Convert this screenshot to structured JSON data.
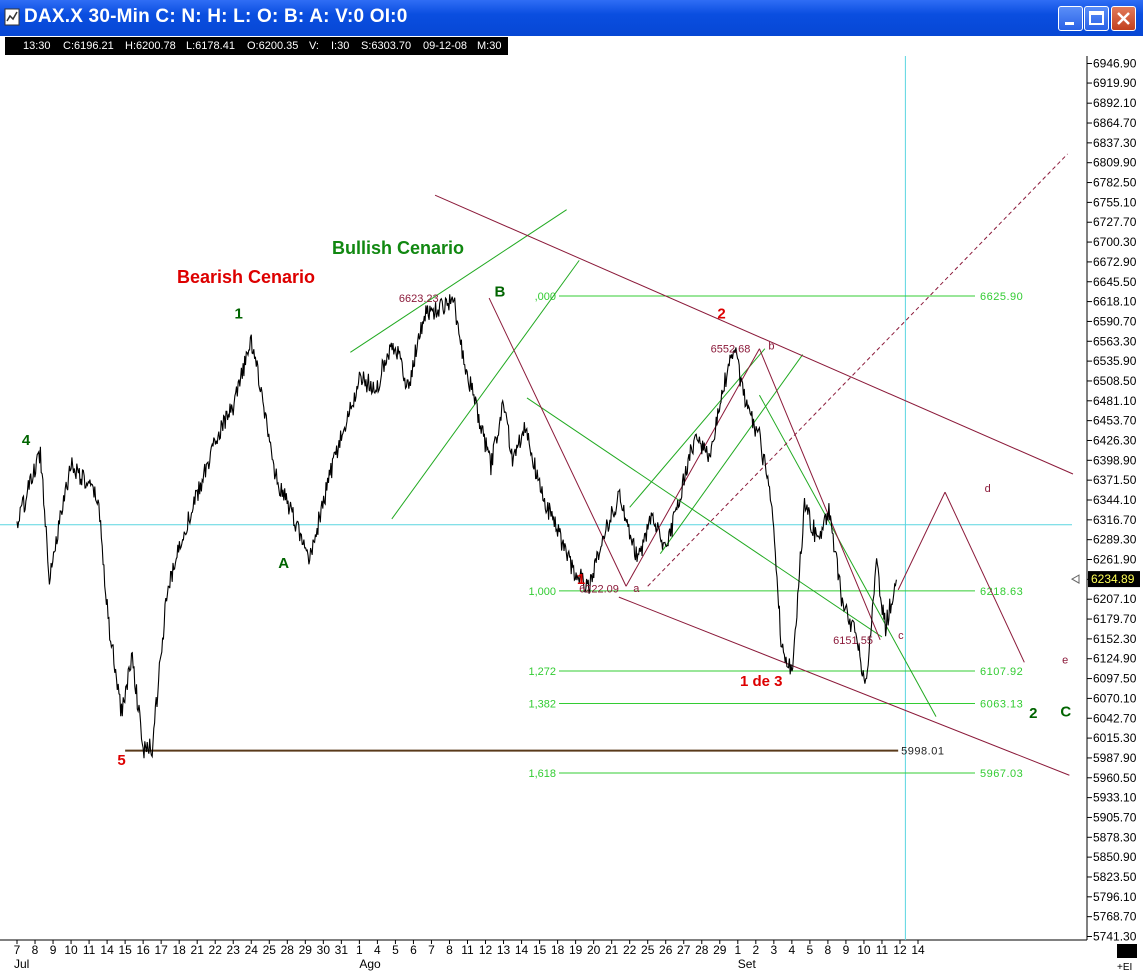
{
  "window": {
    "title": "DAX.X 30-Min C: N: H: L: O: B: A: V:0 OI:0",
    "buttons": [
      "minimize",
      "maximize",
      "close"
    ]
  },
  "infobar": {
    "time": "13:30",
    "close": "C:6196.21",
    "high": "H:6200.78",
    "low": "L:6178.41",
    "open": "O:6200.35",
    "volume": "V:",
    "interval": "I:30",
    "s": "S:6303.70",
    "date": "09-12-08",
    "m": "M:30"
  },
  "chart_data": {
    "type": "line",
    "title": "DAX.X 30-Min",
    "x_ticks": [
      "7",
      "8",
      "9",
      "10",
      "11",
      "14",
      "15",
      "16",
      "17",
      "18",
      "21",
      "22",
      "23",
      "24",
      "25",
      "28",
      "29",
      "30",
      "31",
      "1",
      "4",
      "5",
      "6",
      "7",
      "8",
      "11",
      "12",
      "13",
      "14",
      "15",
      "18",
      "19",
      "20",
      "21",
      "22",
      "25",
      "26",
      "27",
      "28",
      "29",
      "1",
      "2",
      "3",
      "4",
      "5",
      "8",
      "9",
      "10",
      "11",
      "12",
      "14"
    ],
    "x_month_labels": [
      {
        "label": "Jul",
        "day": "7"
      },
      {
        "label": "Ago",
        "day": "1"
      },
      {
        "label": "Set",
        "day": "1"
      }
    ],
    "y_ticks": [
      6946.9,
      6919.9,
      6892.1,
      6864.7,
      6837.3,
      6809.9,
      6782.5,
      6755.1,
      6727.7,
      6700.3,
      6672.9,
      6645.5,
      6618.1,
      6590.7,
      6563.3,
      6535.9,
      6508.5,
      6481.1,
      6453.7,
      6426.3,
      6398.9,
      6371.5,
      6344.1,
      6316.7,
      6289.3,
      6261.9,
      6234.5,
      6207.1,
      6179.7,
      6152.3,
      6124.9,
      6097.5,
      6070.1,
      6042.7,
      6015.3,
      5987.9,
      5960.5,
      5933.1,
      5905.7,
      5878.3,
      5850.9,
      5823.5,
      5796.1,
      5768.7,
      5741.3
    ],
    "ylim": [
      5741.3,
      6946.9
    ],
    "last_price": "6234.89",
    "swing_points": [
      {
        "t": 0.0,
        "v": 6310
      },
      {
        "t": 1.3,
        "v": 6410
      },
      {
        "t": 1.8,
        "v": 6240
      },
      {
        "t": 3.0,
        "v": 6395
      },
      {
        "t": 4.5,
        "v": 6345
      },
      {
        "t": 5.1,
        "v": 6170
      },
      {
        "t": 5.8,
        "v": 6050
      },
      {
        "t": 6.4,
        "v": 6130
      },
      {
        "t": 7.0,
        "v": 5998
      },
      {
        "t": 7.5,
        "v": 6002
      },
      {
        "t": 8.3,
        "v": 6210
      },
      {
        "t": 9.1,
        "v": 6290
      },
      {
        "t": 10.0,
        "v": 6350
      },
      {
        "t": 11.2,
        "v": 6440
      },
      {
        "t": 12.0,
        "v": 6470
      },
      {
        "t": 13.0,
        "v": 6565
      },
      {
        "t": 13.6,
        "v": 6490
      },
      {
        "t": 14.3,
        "v": 6380
      },
      {
        "t": 15.5,
        "v": 6310
      },
      {
        "t": 16.2,
        "v": 6260
      },
      {
        "t": 17.6,
        "v": 6400
      },
      {
        "t": 18.4,
        "v": 6460
      },
      {
        "t": 19.0,
        "v": 6510
      },
      {
        "t": 20.0,
        "v": 6500
      },
      {
        "t": 20.5,
        "v": 6545
      },
      {
        "t": 21.0,
        "v": 6560
      },
      {
        "t": 21.7,
        "v": 6500
      },
      {
        "t": 22.6,
        "v": 6600
      },
      {
        "t": 23.5,
        "v": 6610
      },
      {
        "t": 24.2,
        "v": 6623
      },
      {
        "t": 24.8,
        "v": 6540
      },
      {
        "t": 25.4,
        "v": 6480
      },
      {
        "t": 26.3,
        "v": 6390
      },
      {
        "t": 27.0,
        "v": 6480
      },
      {
        "t": 27.5,
        "v": 6400
      },
      {
        "t": 28.2,
        "v": 6450
      },
      {
        "t": 29.0,
        "v": 6360
      },
      {
        "t": 30.0,
        "v": 6300
      },
      {
        "t": 30.8,
        "v": 6250
      },
      {
        "t": 31.7,
        "v": 6224
      },
      {
        "t": 32.5,
        "v": 6290
      },
      {
        "t": 33.4,
        "v": 6350
      },
      {
        "t": 34.5,
        "v": 6260
      },
      {
        "t": 35.2,
        "v": 6325
      },
      {
        "t": 36.0,
        "v": 6270
      },
      {
        "t": 36.8,
        "v": 6350
      },
      {
        "t": 37.6,
        "v": 6430
      },
      {
        "t": 38.4,
        "v": 6400
      },
      {
        "t": 39.2,
        "v": 6500
      },
      {
        "t": 39.8,
        "v": 6552
      },
      {
        "t": 40.5,
        "v": 6470
      },
      {
        "t": 41.2,
        "v": 6430
      },
      {
        "t": 41.9,
        "v": 6340
      },
      {
        "t": 42.4,
        "v": 6150
      },
      {
        "t": 43.0,
        "v": 6100
      },
      {
        "t": 43.7,
        "v": 6340
      },
      {
        "t": 44.4,
        "v": 6290
      },
      {
        "t": 45.1,
        "v": 6330
      },
      {
        "t": 45.8,
        "v": 6200
      },
      {
        "t": 46.5,
        "v": 6160
      },
      {
        "t": 47.1,
        "v": 6090
      },
      {
        "t": 47.7,
        "v": 6250
      },
      {
        "t": 48.2,
        "v": 6170
      },
      {
        "t": 48.8,
        "v": 6234
      }
    ],
    "fib_levels": [
      {
        "ratio": ",000",
        "price": "6625.90"
      },
      {
        "ratio": "1,000",
        "price": "6218.63"
      },
      {
        "ratio": "1,272",
        "price": "6107.92"
      },
      {
        "ratio": "1,382",
        "price": "6063.13"
      },
      {
        "ratio": "1,618",
        "price": "5967.03"
      }
    ],
    "horizontal_levels": [
      {
        "label": "5998.01",
        "value": 5998.01
      },
      {
        "label": "",
        "value": 6310
      }
    ],
    "price_annotations": [
      "6623.23",
      "6552.68",
      "6222.09",
      "6151.55"
    ],
    "small_labels": [
      "a",
      "b",
      "c",
      "d",
      "e"
    ],
    "wave_labels": [
      {
        "text": "4",
        "color": "#006400"
      },
      {
        "text": "5",
        "color": "#dd0000"
      },
      {
        "text": "1",
        "color": "#006400"
      },
      {
        "text": "A",
        "color": "#006400"
      },
      {
        "text": "B",
        "color": "#006400"
      },
      {
        "text": "2",
        "color": "#dd0000"
      },
      {
        "text": "1",
        "color": "#dd0000"
      },
      {
        "text": "1 de 3",
        "color": "#dd0000"
      },
      {
        "text": "2",
        "color": "#006400"
      },
      {
        "text": "C",
        "color": "#006400"
      }
    ],
    "scenario_labels": [
      {
        "text": "Bullish Cenario",
        "color": "#118811"
      },
      {
        "text": "Bearish Cenario",
        "color": "#dd0000"
      }
    ],
    "ei_label": "+EI",
    "colors": {
      "price": "#000000",
      "fib": "#33cc33",
      "channel_green": "#22aa22",
      "channel_maroon": "#8b1a3a",
      "cursor": "#5ad5e0",
      "support": "#5a3a1a"
    }
  }
}
